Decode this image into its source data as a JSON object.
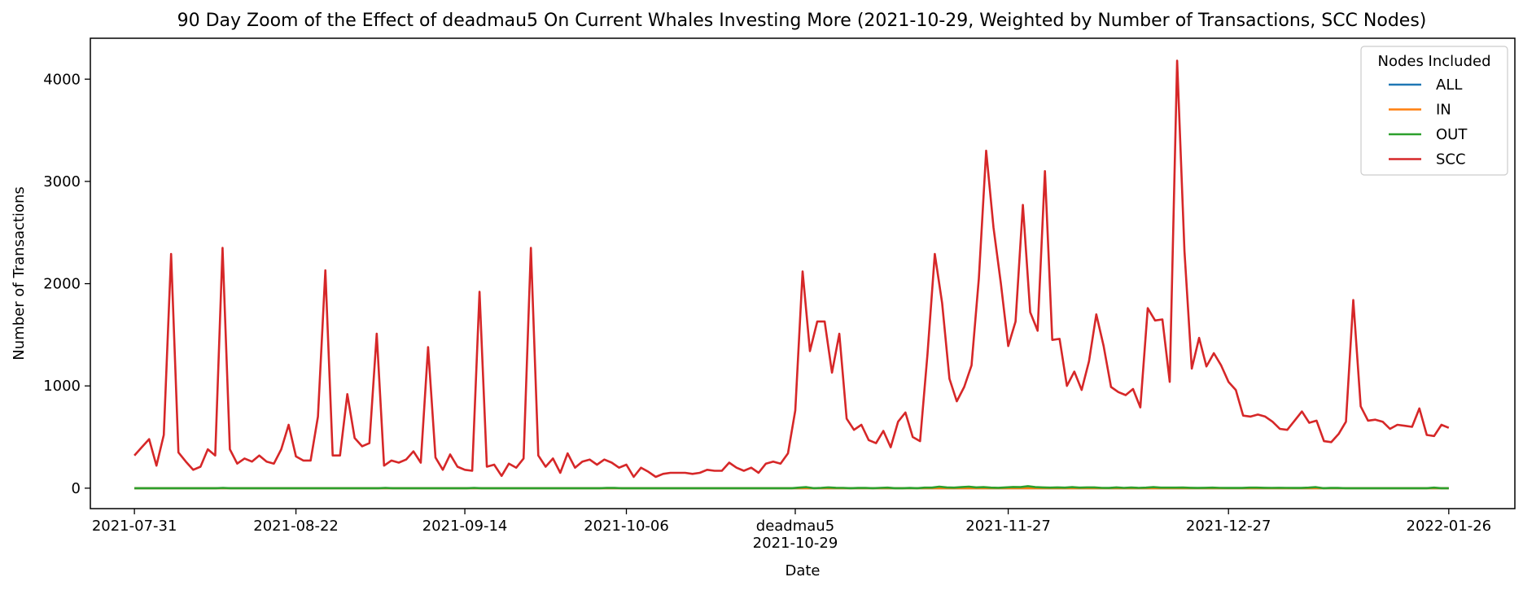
{
  "chart_data": {
    "type": "line",
    "title": "90 Day Zoom of the Effect of deadmau5 On Current Whales Investing More (2021-10-29, Weighted by Number of Transactions, SCC Nodes)",
    "xlabel": "Date",
    "ylabel": "Number of Transactions",
    "x_start": "2021-07-31",
    "x_end": "2022-01-26",
    "xlim": [
      "2021-07-25",
      "2022-01-35"
    ],
    "ylim": [
      -200,
      4400
    ],
    "x_ticks": [
      {
        "date": "2021-07-31",
        "label": "2021-07-31"
      },
      {
        "date": "2021-08-22",
        "label": "2021-08-22"
      },
      {
        "date": "2021-09-14",
        "label": "2021-09-14"
      },
      {
        "date": "2021-10-06",
        "label": "2021-10-06"
      },
      {
        "date": "2021-10-29",
        "label": "deadmau5\n2021-10-29"
      },
      {
        "date": "2021-11-27",
        "label": "2021-11-27"
      },
      {
        "date": "2021-12-27",
        "label": "2021-12-27"
      },
      {
        "date": "2022-01-26",
        "label": "2022-01-26"
      }
    ],
    "y_ticks": [
      0,
      1000,
      2000,
      3000,
      4000
    ],
    "legend": {
      "title": "Nodes Included",
      "position": "top-right"
    },
    "series": [
      {
        "name": "ALL",
        "color": "#1f77b4",
        "values": [
          0,
          0,
          0,
          0,
          0,
          0,
          0,
          0,
          0,
          0,
          0,
          0,
          0,
          0,
          0,
          0,
          0,
          0,
          0,
          0,
          0,
          0,
          0,
          0,
          0,
          0,
          0,
          0,
          0,
          0,
          0,
          0,
          0,
          0,
          0,
          0,
          0,
          0,
          0,
          0,
          0,
          0,
          0,
          0,
          0,
          0,
          0,
          0,
          0,
          0,
          0,
          0,
          0,
          0,
          0,
          0,
          0,
          0,
          0,
          0,
          0,
          0,
          0,
          0,
          0,
          0,
          0,
          0,
          0,
          0,
          0,
          0,
          0,
          0,
          0,
          0,
          0,
          0,
          0,
          0,
          0,
          0,
          0,
          0,
          0,
          0,
          0,
          0,
          0,
          0,
          0,
          0,
          0,
          0,
          0,
          0,
          0,
          0,
          0,
          0,
          0,
          0,
          0,
          0,
          0,
          0,
          0,
          0,
          0,
          0,
          0,
          0,
          0,
          0,
          0,
          0,
          0,
          0,
          0,
          0,
          0,
          0,
          0,
          0,
          0,
          0,
          0,
          0,
          0,
          0,
          0,
          0,
          0,
          0,
          0,
          0,
          0,
          0,
          0,
          0,
          0,
          0,
          0,
          0,
          0,
          0,
          0,
          0,
          0,
          0,
          0,
          0,
          0,
          0,
          0,
          0,
          0,
          0,
          0,
          0,
          0,
          0,
          0,
          0,
          0,
          0,
          0,
          0,
          0,
          0,
          0,
          0,
          0,
          0,
          0,
          0,
          0,
          0,
          0
        ]
      },
      {
        "name": "IN",
        "color": "#ff7f0e",
        "values": [
          0,
          0,
          0,
          0,
          0,
          0,
          0,
          0,
          0,
          0,
          0,
          0,
          0,
          0,
          0,
          0,
          0,
          0,
          0,
          0,
          0,
          0,
          0,
          0,
          0,
          0,
          0,
          0,
          0,
          0,
          0,
          0,
          0,
          0,
          0,
          0,
          0,
          0,
          0,
          0,
          0,
          0,
          0,
          0,
          0,
          0,
          0,
          0,
          0,
          0,
          0,
          0,
          0,
          0,
          0,
          0,
          0,
          0,
          0,
          0,
          0,
          0,
          0,
          0,
          0,
          0,
          0,
          0,
          0,
          0,
          0,
          0,
          0,
          0,
          0,
          0,
          0,
          0,
          0,
          0,
          0,
          0,
          0,
          0,
          0,
          0,
          0,
          0,
          0,
          0,
          0,
          0,
          0,
          0,
          0,
          0,
          0,
          0,
          0,
          0,
          0,
          0,
          0,
          0,
          0,
          0,
          0,
          0,
          0,
          0,
          0,
          0,
          0,
          0,
          0,
          0,
          0,
          0,
          0,
          0,
          0,
          0,
          0,
          0,
          0,
          0,
          0,
          0,
          0,
          0,
          0,
          0,
          0,
          0,
          0,
          0,
          0,
          0,
          0,
          0,
          0,
          0,
          0,
          0,
          0,
          0,
          0,
          0,
          0,
          0,
          0,
          0,
          0,
          0,
          0,
          0,
          0,
          0,
          0,
          0,
          0,
          0,
          0,
          0,
          0,
          0,
          0,
          0,
          0,
          0,
          0,
          0,
          0,
          0,
          0,
          0,
          0,
          0,
          0
        ]
      },
      {
        "name": "OUT",
        "color": "#2ca02c",
        "values": [
          0,
          0,
          0,
          0,
          0,
          0,
          0,
          0,
          0,
          0,
          0,
          0,
          3,
          0,
          0,
          0,
          0,
          0,
          0,
          0,
          0,
          0,
          0,
          0,
          0,
          0,
          0,
          0,
          0,
          0,
          0,
          0,
          0,
          0,
          3,
          0,
          0,
          0,
          0,
          0,
          0,
          0,
          0,
          0,
          0,
          0,
          3,
          0,
          0,
          0,
          0,
          0,
          0,
          0,
          0,
          0,
          0,
          0,
          0,
          0,
          0,
          0,
          0,
          0,
          3,
          2,
          0,
          0,
          0,
          0,
          0,
          0,
          0,
          0,
          0,
          0,
          0,
          0,
          0,
          0,
          0,
          0,
          0,
          0,
          0,
          0,
          0,
          0,
          0,
          0,
          5,
          10,
          0,
          3,
          8,
          4,
          3,
          0,
          2,
          3,
          0,
          3,
          5,
          0,
          0,
          2,
          0,
          5,
          5,
          15,
          8,
          5,
          10,
          15,
          8,
          10,
          5,
          4,
          8,
          12,
          10,
          20,
          10,
          8,
          5,
          8,
          5,
          10,
          5,
          8,
          8,
          3,
          2,
          8,
          3,
          6,
          3,
          5,
          10,
          5,
          5,
          5,
          6,
          4,
          2,
          4,
          5,
          3,
          2,
          2,
          2,
          5,
          5,
          4,
          3,
          4,
          3,
          2,
          2,
          5,
          10,
          0,
          2,
          2,
          0,
          0,
          0,
          0,
          0,
          0,
          0,
          0,
          0,
          0,
          0,
          0,
          5,
          0,
          0
        ]
      },
      {
        "name": "SCC",
        "color": "#d62728",
        "values": [
          320,
          400,
          480,
          220,
          520,
          2290,
          350,
          260,
          180,
          210,
          380,
          320,
          2350,
          380,
          240,
          290,
          260,
          320,
          260,
          240,
          380,
          620,
          310,
          270,
          270,
          700,
          2130,
          320,
          320,
          920,
          490,
          410,
          440,
          1510,
          220,
          270,
          250,
          280,
          360,
          250,
          1380,
          300,
          180,
          330,
          210,
          180,
          170,
          1920,
          210,
          230,
          120,
          240,
          200,
          290,
          2350,
          320,
          210,
          290,
          150,
          340,
          200,
          260,
          280,
          230,
          280,
          250,
          200,
          230,
          110,
          200,
          160,
          110,
          140,
          150,
          150,
          150,
          140,
          150,
          180,
          170,
          170,
          250,
          200,
          170,
          200,
          150,
          240,
          260,
          240,
          340,
          760,
          2120,
          1340,
          1630,
          1630,
          1130,
          1510,
          680,
          570,
          620,
          470,
          440,
          560,
          400,
          650,
          740,
          500,
          460,
          1310,
          2290,
          1810,
          1070,
          850,
          990,
          1200,
          2050,
          3300,
          2550,
          2000,
          1390,
          1630,
          2770,
          1720,
          1540,
          3100,
          1450,
          1460,
          1000,
          1140,
          960,
          1240,
          1700,
          1390,
          990,
          940,
          910,
          970,
          790,
          1760,
          1640,
          1650,
          1040,
          4180,
          2320,
          1170,
          1470,
          1190,
          1320,
          1200,
          1040,
          960,
          710,
          700,
          720,
          700,
          650,
          580,
          570,
          660,
          750,
          640,
          660,
          460,
          450,
          530,
          650,
          1840,
          800,
          660,
          670,
          650,
          580,
          620,
          610,
          600,
          780,
          520,
          510,
          620,
          590
        ]
      }
    ]
  }
}
